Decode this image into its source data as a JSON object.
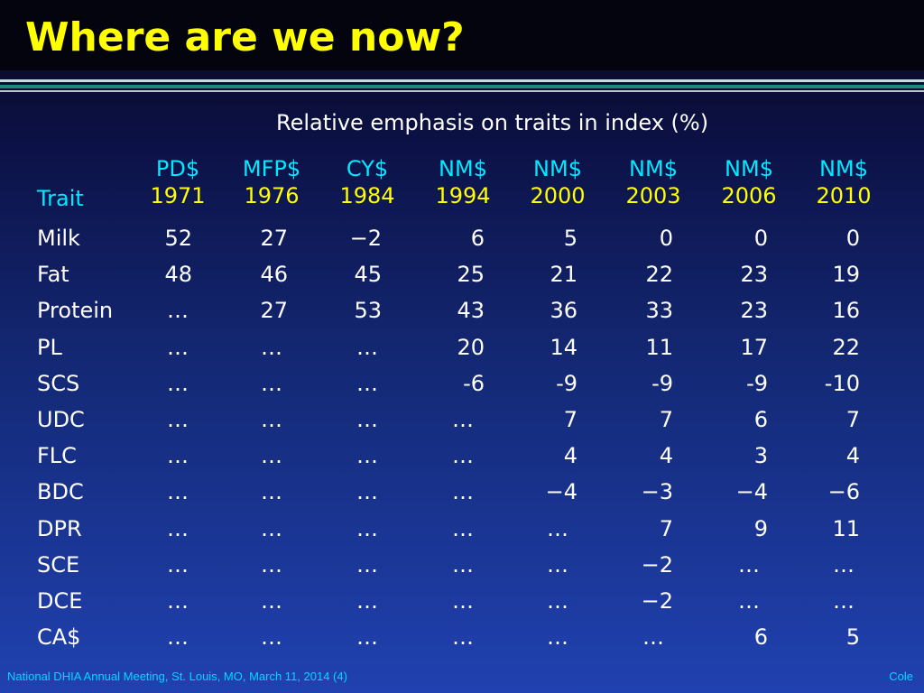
{
  "title": "Where are we now?",
  "subtitle": "Relative emphasis on traits in index (%)",
  "trait_header": "Trait",
  "columns": [
    {
      "name": "PD$",
      "year": "1971"
    },
    {
      "name": "MFP$",
      "year": "1976"
    },
    {
      "name": "CY$",
      "year": "1984"
    },
    {
      "name": "NM$",
      "year": "1994"
    },
    {
      "name": "NM$",
      "year": "2000"
    },
    {
      "name": "NM$",
      "year": "2003"
    },
    {
      "name": "NM$",
      "year": "2006"
    },
    {
      "name": "NM$",
      "year": "2010"
    }
  ],
  "rows": [
    {
      "trait": "Milk",
      "values": [
        "52",
        "27",
        "−2",
        "6",
        "5",
        "0",
        "0",
        "0"
      ]
    },
    {
      "trait": "Fat",
      "values": [
        "48",
        "46",
        "45",
        "25",
        "21",
        "22",
        "23",
        "19"
      ]
    },
    {
      "trait": "Protein",
      "values": [
        "…",
        "27",
        "53",
        "43",
        "36",
        "33",
        "23",
        "16"
      ]
    },
    {
      "trait": "PL",
      "values": [
        "…",
        "…",
        "…",
        "20",
        "14",
        "11",
        "17",
        "22"
      ]
    },
    {
      "trait": "SCS",
      "values": [
        "…",
        "…",
        "…",
        "-6",
        "-9",
        "-9",
        "-9",
        "-10"
      ]
    },
    {
      "trait": "UDC",
      "values": [
        "…",
        "…",
        "…",
        "…",
        "7",
        "7",
        "6",
        "7"
      ]
    },
    {
      "trait": "FLC",
      "values": [
        "…",
        "…",
        "…",
        "…",
        "4",
        "4",
        "3",
        "4"
      ]
    },
    {
      "trait": "BDC",
      "values": [
        "…",
        "…",
        "…",
        "…",
        "−4",
        "−3",
        "−4",
        "−6"
      ]
    },
    {
      "trait": "DPR",
      "values": [
        "…",
        "…",
        "…",
        "…",
        "…",
        "7",
        "9",
        "11"
      ]
    },
    {
      "trait": "SCE",
      "values": [
        "…",
        "…",
        "…",
        "…",
        "…",
        "−2",
        "…",
        "…"
      ]
    },
    {
      "trait": "DCE",
      "values": [
        "…",
        "…",
        "…",
        "…",
        "…",
        "−2",
        "…",
        "…"
      ]
    },
    {
      "trait": "CA$",
      "values": [
        "…",
        "…",
        "…",
        "…",
        "…",
        "…",
        "6",
        "5"
      ]
    }
  ],
  "footer_left": "National DHIA Annual Meeting, St. Louis, MO, March 11, 2014 (4)",
  "footer_right": "Cole"
}
